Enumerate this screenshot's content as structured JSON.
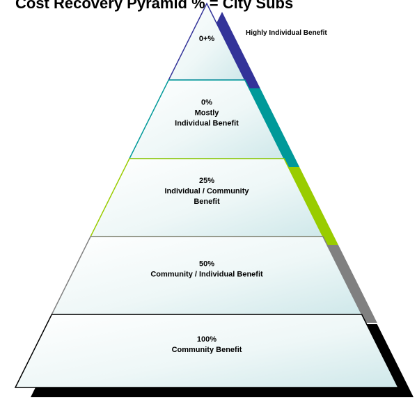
{
  "title": "Cost Recovery Pyramid  % = City Subs",
  "side_label": "Highly Individual Benefit",
  "tiers": [
    {
      "lines": [
        "0+%"
      ]
    },
    {
      "lines": [
        "0%",
        "Mostly",
        "Individual Benefit"
      ]
    },
    {
      "lines": [
        "25%",
        "Individual / Community",
        "Benefit"
      ]
    },
    {
      "lines": [
        "50%",
        "Community / Individual Benefit"
      ]
    },
    {
      "lines": [
        "100%",
        "Community Benefit"
      ]
    }
  ]
}
